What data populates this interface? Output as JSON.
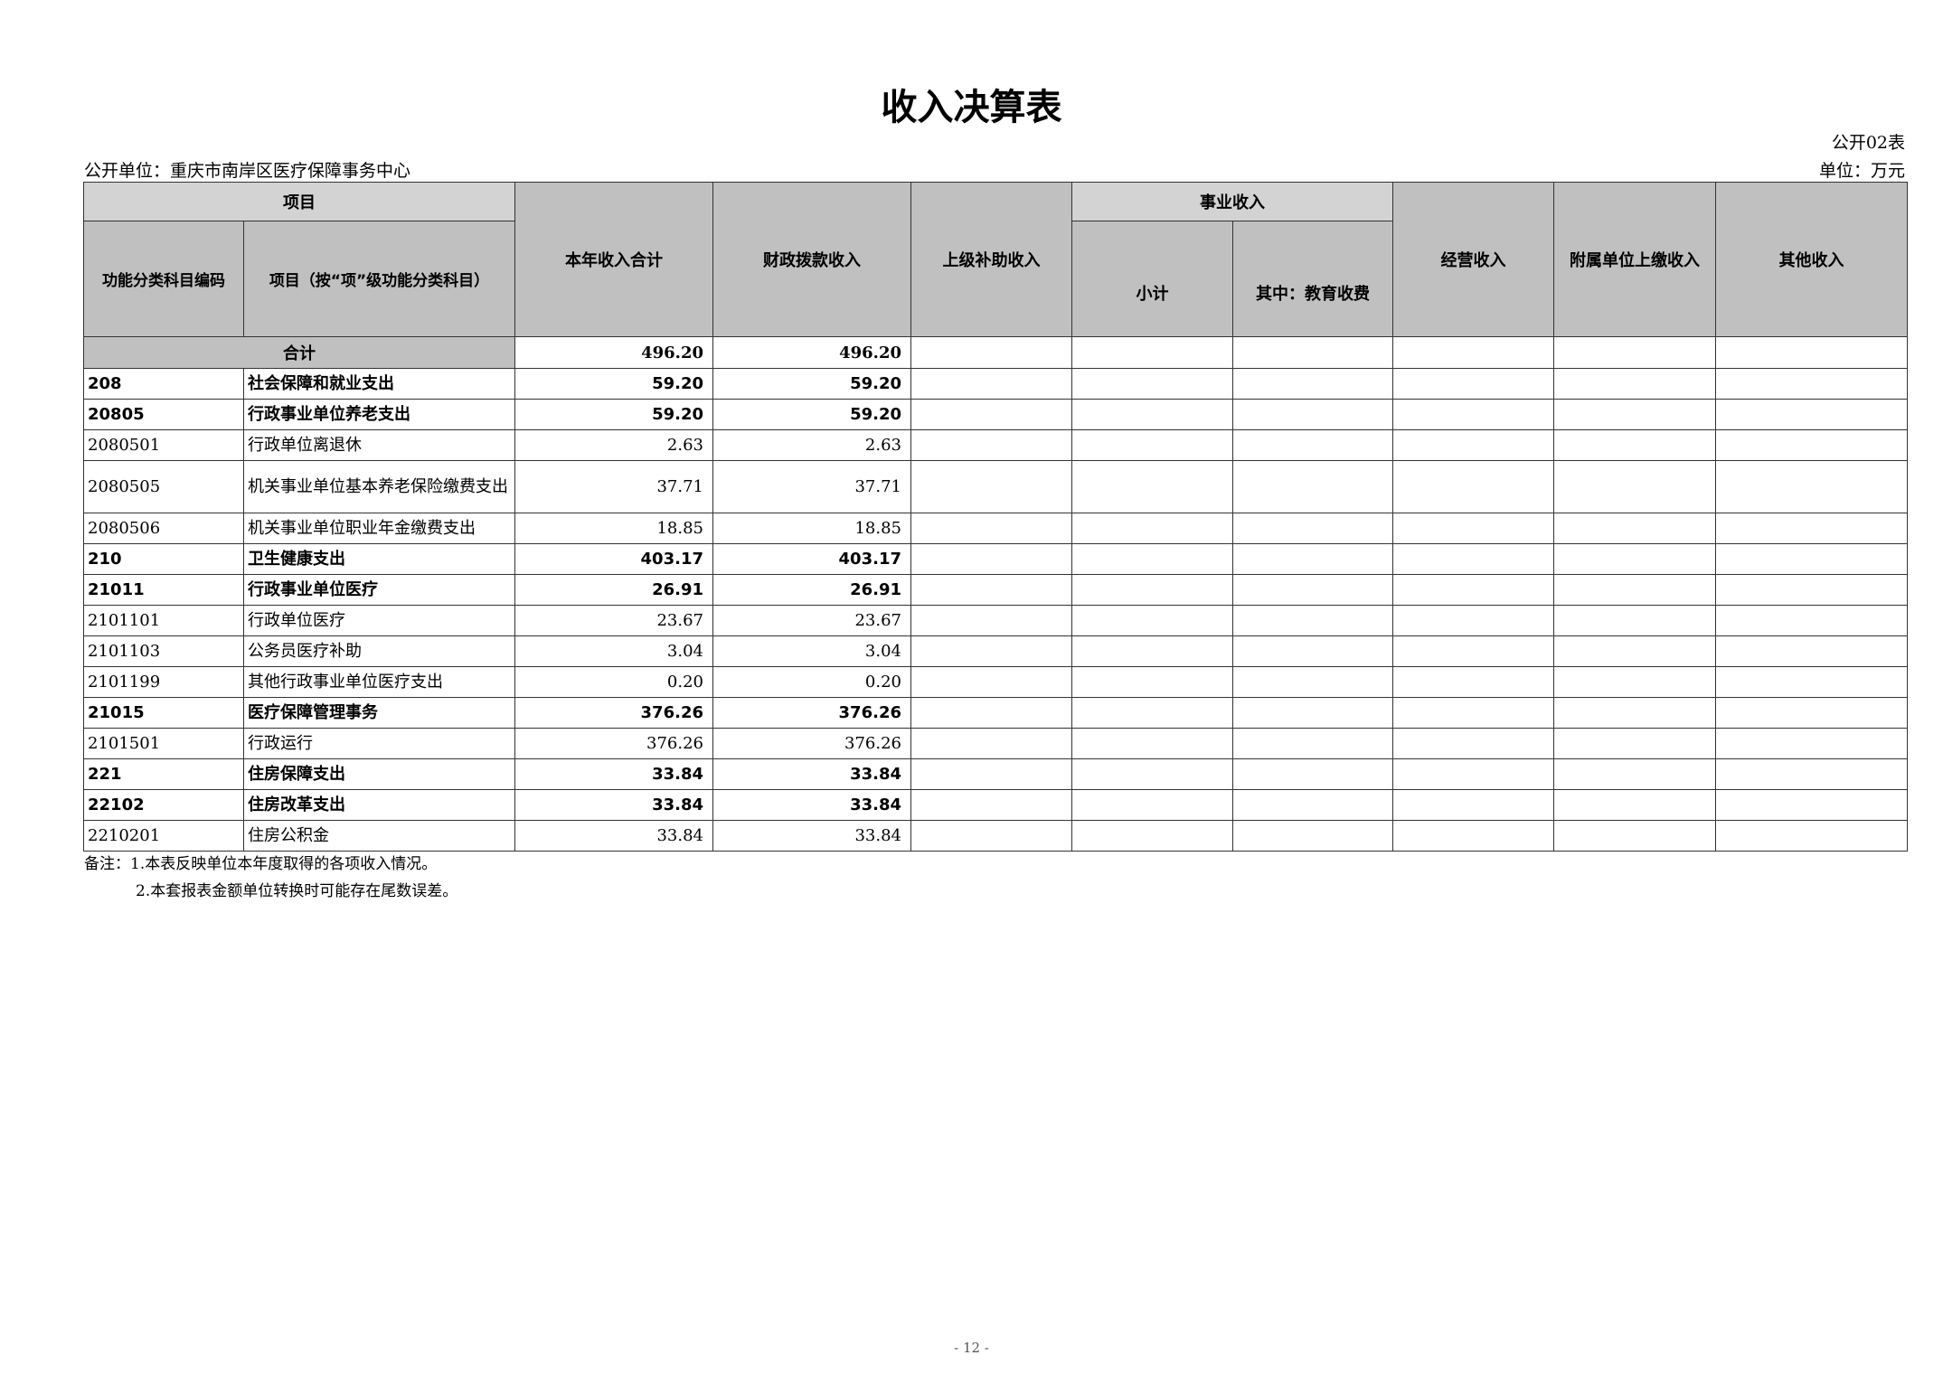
{
  "title": "收入决算表",
  "form_no": "公开02表",
  "unit_name": "公开单位：重庆市南岸区医疗保障事务中心",
  "unit": "单位：万元",
  "header": {
    "group_item": "项目",
    "code": "功能分类科目编码",
    "name": "项目（按“项”级功能分类科目）",
    "total": "本年收入合计",
    "fiscal": "财政拨款收入",
    "superior": "上级补助收入",
    "business_group": "事业收入",
    "subtotal": "小计",
    "education": "其中：教育收费",
    "operating": "经营收入",
    "affiliated": "附属单位上缴收入",
    "other": "其他收入"
  },
  "total_row": {
    "label": "合计",
    "total": "496.20",
    "fiscal": "496.20"
  },
  "rows": [
    {
      "code": "208",
      "name": "社会保障和就业支出",
      "total": "59.20",
      "fiscal": "59.20",
      "bold": true
    },
    {
      "code": "20805",
      "name": "行政事业单位养老支出",
      "total": "59.20",
      "fiscal": "59.20",
      "bold": true
    },
    {
      "code": "2080501",
      "name": "行政单位离退休",
      "total": "2.63",
      "fiscal": "2.63",
      "bold": false
    },
    {
      "code": "2080505",
      "name": "机关事业单位基本养老保险缴费支出",
      "total": "37.71",
      "fiscal": "37.71",
      "bold": false
    },
    {
      "code": "2080506",
      "name": "机关事业单位职业年金缴费支出",
      "total": "18.85",
      "fiscal": "18.85",
      "bold": false
    },
    {
      "code": "210",
      "name": "卫生健康支出",
      "total": "403.17",
      "fiscal": "403.17",
      "bold": true
    },
    {
      "code": "21011",
      "name": "行政事业单位医疗",
      "total": "26.91",
      "fiscal": "26.91",
      "bold": true
    },
    {
      "code": "2101101",
      "name": "行政单位医疗",
      "total": "23.67",
      "fiscal": "23.67",
      "bold": false
    },
    {
      "code": "2101103",
      "name": "公务员医疗补助",
      "total": "3.04",
      "fiscal": "3.04",
      "bold": false
    },
    {
      "code": "2101199",
      "name": "其他行政事业单位医疗支出",
      "total": "0.20",
      "fiscal": "0.20",
      "bold": false
    },
    {
      "code": "21015",
      "name": "医疗保障管理事务",
      "total": "376.26",
      "fiscal": "376.26",
      "bold": true
    },
    {
      "code": "2101501",
      "name": "行政运行",
      "total": "376.26",
      "fiscal": "376.26",
      "bold": false
    },
    {
      "code": "221",
      "name": "住房保障支出",
      "total": "33.84",
      "fiscal": "33.84",
      "bold": true
    },
    {
      "code": "22102",
      "name": "住房改革支出",
      "total": "33.84",
      "fiscal": "33.84",
      "bold": true
    },
    {
      "code": "2210201",
      "name": "住房公积金",
      "total": "33.84",
      "fiscal": "33.84",
      "bold": false
    }
  ],
  "notes": [
    "备注：1.本表反映单位本年度取得的各项收入情况。",
    "2.本套报表金额单位转换时可能存在尾数误差。"
  ],
  "page_number": "- 12 -"
}
